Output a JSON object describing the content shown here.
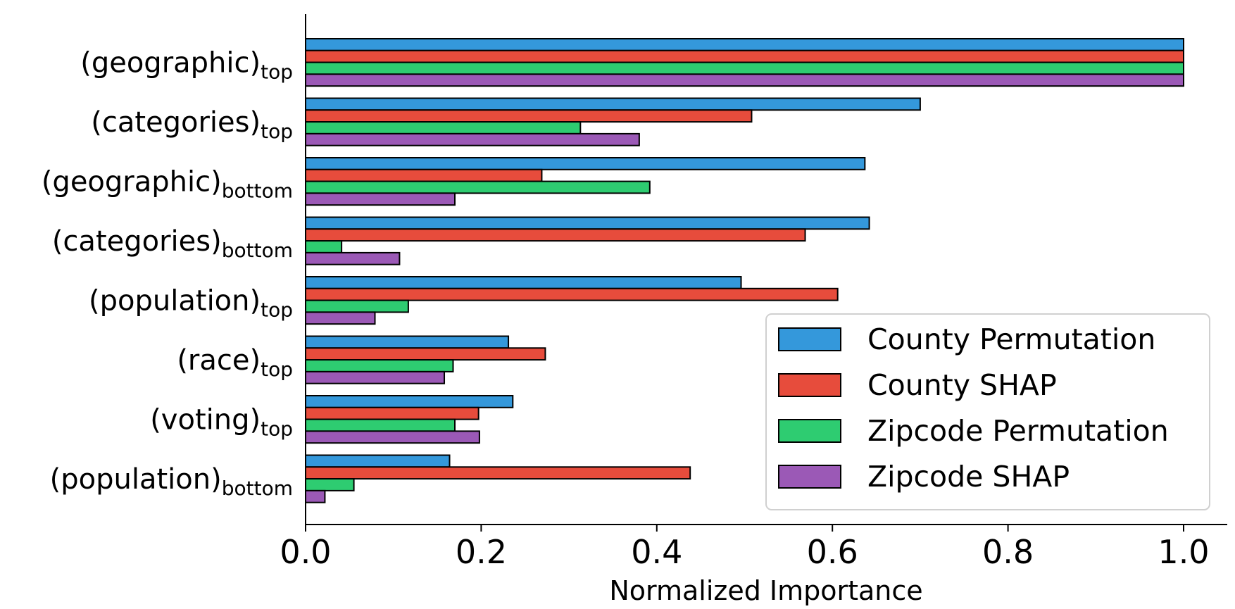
{
  "chart_data": {
    "type": "bar",
    "orientation": "horizontal",
    "title": "",
    "xlabel": "Normalized Importance",
    "ylabel": "",
    "xlim": [
      0.0,
      1.05
    ],
    "xticks": [
      0.0,
      0.2,
      0.4,
      0.6,
      0.8,
      1.0
    ],
    "xtick_labels": [
      "0.0",
      "0.2",
      "0.4",
      "0.6",
      "0.8",
      "1.0"
    ],
    "grid": false,
    "legend_position": "bottom-right",
    "categories": [
      {
        "base": "(geographic)",
        "sub": "top"
      },
      {
        "base": "(categories)",
        "sub": "top"
      },
      {
        "base": "(geographic)",
        "sub": "bottom"
      },
      {
        "base": "(categories)",
        "sub": "bottom"
      },
      {
        "base": "(population)",
        "sub": "top"
      },
      {
        "base": "(race)",
        "sub": "top"
      },
      {
        "base": "(voting)",
        "sub": "top"
      },
      {
        "base": "(population)",
        "sub": "bottom"
      }
    ],
    "series": [
      {
        "name": "County Permutation",
        "color": "#3498db",
        "values": [
          1.0,
          0.7,
          0.637,
          0.642,
          0.496,
          0.231,
          0.236,
          0.164
        ]
      },
      {
        "name": "County SHAP",
        "color": "#e74c3c",
        "values": [
          1.0,
          0.508,
          0.269,
          0.569,
          0.606,
          0.273,
          0.197,
          0.438
        ]
      },
      {
        "name": "Zipcode Permutation",
        "color": "#2ecc71",
        "values": [
          1.0,
          0.313,
          0.392,
          0.041,
          0.117,
          0.168,
          0.17,
          0.055
        ]
      },
      {
        "name": "Zipcode SHAP",
        "color": "#9b59b6",
        "values": [
          1.0,
          0.38,
          0.17,
          0.107,
          0.079,
          0.158,
          0.198,
          0.022
        ]
      }
    ]
  }
}
